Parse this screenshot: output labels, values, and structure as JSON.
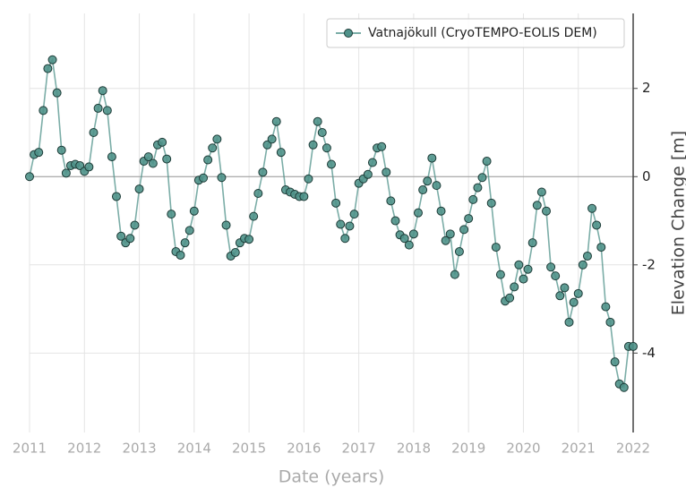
{
  "chart_data": {
    "type": "line",
    "xlabel": "Date (years)",
    "ylabel": "Elevation Change [m]",
    "legend": "upper right",
    "grid": true,
    "hline": 0,
    "xlim": [
      2011,
      2022
    ],
    "xticks": [
      2011,
      2012,
      2013,
      2014,
      2015,
      2016,
      2017,
      2018,
      2019,
      2020,
      2021,
      2022
    ],
    "ylim": [
      -5.8,
      3.7
    ],
    "yticks": [
      -4,
      -2,
      0,
      2
    ],
    "x": [
      2011,
      2011.083,
      2011.167,
      2011.25,
      2011.333,
      2011.417,
      2011.5,
      2011.583,
      2011.667,
      2011.75,
      2011.833,
      2011.917,
      2012,
      2012.083,
      2012.167,
      2012.25,
      2012.333,
      2012.417,
      2012.5,
      2012.583,
      2012.667,
      2012.75,
      2012.833,
      2012.917,
      2013,
      2013.083,
      2013.167,
      2013.25,
      2013.333,
      2013.417,
      2013.5,
      2013.583,
      2013.667,
      2013.75,
      2013.833,
      2013.917,
      2014,
      2014.083,
      2014.167,
      2014.25,
      2014.333,
      2014.417,
      2014.5,
      2014.583,
      2014.667,
      2014.75,
      2014.833,
      2014.917,
      2015,
      2015.083,
      2015.167,
      2015.25,
      2015.333,
      2015.417,
      2015.5,
      2015.583,
      2015.667,
      2015.75,
      2015.833,
      2015.917,
      2016,
      2016.083,
      2016.167,
      2016.25,
      2016.333,
      2016.417,
      2016.5,
      2016.583,
      2016.667,
      2016.75,
      2016.833,
      2016.917,
      2017,
      2017.083,
      2017.167,
      2017.25,
      2017.333,
      2017.417,
      2017.5,
      2017.583,
      2017.667,
      2017.75,
      2017.833,
      2017.917,
      2018,
      2018.083,
      2018.167,
      2018.25,
      2018.333,
      2018.417,
      2018.5,
      2018.583,
      2018.667,
      2018.75,
      2018.833,
      2018.917,
      2019,
      2019.083,
      2019.167,
      2019.25,
      2019.333,
      2019.417,
      2019.5,
      2019.583,
      2019.667,
      2019.75,
      2019.833,
      2019.917,
      2020,
      2020.083,
      2020.167,
      2020.25,
      2020.333,
      2020.417,
      2020.5,
      2020.583,
      2020.667,
      2020.75,
      2020.833,
      2020.917,
      2021,
      2021.083,
      2021.167,
      2021.25,
      2021.333,
      2021.417,
      2021.5,
      2021.583,
      2021.667,
      2021.75,
      2021.833,
      2021.917,
      2022
    ],
    "series": [
      {
        "name": "Vatnajökull (CryoTEMPO-EOLIS DEM)",
        "color": "#4f928a",
        "values": [
          0,
          0.5,
          0.55,
          1.5,
          2.45,
          2.65,
          1.9,
          0.6,
          0.08,
          0.25,
          0.28,
          0.25,
          0.12,
          0.22,
          1.0,
          1.55,
          1.95,
          1.5,
          0.45,
          -0.45,
          -1.35,
          -1.5,
          -1.4,
          -1.1,
          -0.28,
          0.35,
          0.45,
          0.3,
          0.72,
          0.78,
          0.4,
          -0.85,
          -1.7,
          -1.78,
          -1.5,
          -1.22,
          -0.78,
          -0.08,
          -0.03,
          0.38,
          0.65,
          0.85,
          -0.02,
          -1.1,
          -1.8,
          -1.72,
          -1.5,
          -1.4,
          -1.42,
          -0.9,
          -0.38,
          0.1,
          0.72,
          0.85,
          1.25,
          0.55,
          -0.3,
          -0.35,
          -0.4,
          -0.45,
          -0.45,
          -0.05,
          0.72,
          1.25,
          1.0,
          0.65,
          0.28,
          -0.6,
          -1.08,
          -1.4,
          -1.12,
          -0.85,
          -0.15,
          -0.05,
          0.05,
          0.32,
          0.65,
          0.68,
          0.1,
          -0.55,
          -1.0,
          -1.32,
          -1.4,
          -1.55,
          -1.3,
          -0.82,
          -0.3,
          -0.1,
          0.42,
          -0.2,
          -0.78,
          -1.45,
          -1.3,
          -2.22,
          -1.7,
          -1.2,
          -0.95,
          -0.52,
          -0.25,
          -0.02,
          0.35,
          -0.6,
          -1.6,
          -2.22,
          -2.82,
          -2.75,
          -2.5,
          -2.0,
          -2.32,
          -2.1,
          -1.5,
          -0.65,
          -0.35,
          -0.78,
          -2.05,
          -2.25,
          -2.7,
          -2.52,
          -3.3,
          -2.85,
          -2.65,
          -2.0,
          -1.8,
          -0.72,
          -1.1,
          -1.6,
          -2.95,
          -3.3,
          -4.2,
          -4.7,
          -4.78,
          -3.85,
          -3.85
        ]
      }
    ]
  }
}
